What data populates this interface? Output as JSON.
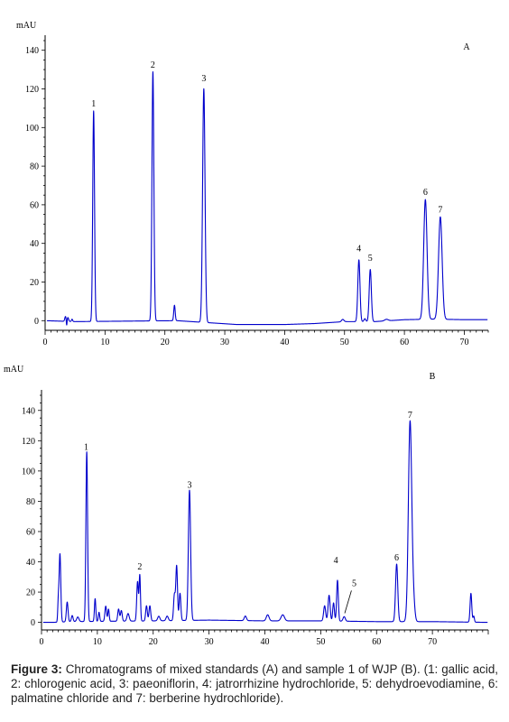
{
  "caption": {
    "label": "Figure 3:",
    "text": " Chromatograms of mixed standards (A) and sample 1 of WJP (B). (1: gallic acid, 2: chlorogenic acid, 3: paeoniflorin, 4: jatrorrhizine hydrochloride, 5: dehydroevodiamine, 6: palmatine chloride and 7: berberine hydrochloride)."
  },
  "chart_data": [
    {
      "type": "line",
      "panel": "A",
      "title": "",
      "ylabel": "mAU",
      "xlabel": "",
      "xlim": [
        0,
        74
      ],
      "ylim": [
        -5,
        145
      ],
      "xticks": [
        0,
        10,
        20,
        30,
        40,
        50,
        60,
        70
      ],
      "yticks": [
        0,
        20,
        40,
        60,
        80,
        100,
        120,
        140
      ],
      "grid": false,
      "series": [
        {
          "color": "#0000cc",
          "baseline": [
            [
              0,
              0
            ],
            [
              5,
              -0.5
            ],
            [
              22,
              0
            ],
            [
              27,
              -1
            ],
            [
              32,
              -2
            ],
            [
              40,
              -2
            ],
            [
              45,
              -1.5
            ],
            [
              50,
              -0.5
            ],
            [
              55,
              -0.5
            ],
            [
              60,
              0.5
            ],
            [
              65,
              0.8
            ],
            [
              70,
              0.5
            ],
            [
              74,
              0.5
            ]
          ],
          "peaks": [
            {
              "rt": 3.4,
              "height": 2.5,
              "width": 0.12
            },
            {
              "rt": 3.6,
              "height": -3,
              "width": 0.06
            },
            {
              "rt": 3.8,
              "height": 2,
              "width": 0.12
            },
            {
              "rt": 4.5,
              "height": 1.2,
              "width": 0.1
            },
            {
              "rt": 8.1,
              "height": 109,
              "width": 0.15
            },
            {
              "rt": 18.0,
              "height": 129,
              "width": 0.16
            },
            {
              "rt": 21.6,
              "height": 8,
              "width": 0.12
            },
            {
              "rt": 26.5,
              "height": 121,
              "width": 0.2
            },
            {
              "rt": 49.7,
              "height": 1.2,
              "width": 0.2
            },
            {
              "rt": 52.4,
              "height": 32,
              "width": 0.18
            },
            {
              "rt": 53.4,
              "height": 1.5,
              "width": 0.15
            },
            {
              "rt": 54.3,
              "height": 27,
              "width": 0.18
            },
            {
              "rt": 57.0,
              "height": 0.8,
              "width": 0.3
            },
            {
              "rt": 63.5,
              "height": 62,
              "width": 0.28
            },
            {
              "rt": 66.0,
              "height": 53,
              "width": 0.3
            }
          ]
        }
      ],
      "annotations": [
        {
          "text": "1",
          "x": 8.1,
          "y": 111
        },
        {
          "text": "2",
          "x": 18.0,
          "y": 131
        },
        {
          "text": "3",
          "x": 26.5,
          "y": 124
        },
        {
          "text": "4",
          "x": 52.4,
          "y": 36
        },
        {
          "text": "5",
          "x": 54.3,
          "y": 31
        },
        {
          "text": "6",
          "x": 63.5,
          "y": 65
        },
        {
          "text": "7",
          "x": 66.0,
          "y": 56
        }
      ],
      "panel_label": "A"
    },
    {
      "type": "line",
      "panel": "B",
      "title": "",
      "ylabel": "mAU",
      "xlabel": "",
      "xlim": [
        0,
        80
      ],
      "ylim": [
        -5,
        150
      ],
      "xticks": [
        0,
        10,
        20,
        30,
        40,
        50,
        60,
        70
      ],
      "yticks": [
        0,
        20,
        40,
        60,
        80,
        100,
        120,
        140
      ],
      "grid": false,
      "series": [
        {
          "color": "#0000cc",
          "baseline": [
            [
              0,
              0
            ],
            [
              2,
              0
            ],
            [
              5,
              0.5
            ],
            [
              20,
              1
            ],
            [
              30,
              1.5
            ],
            [
              40,
              1
            ],
            [
              50,
              1
            ],
            [
              60,
              0.5
            ],
            [
              70,
              0.5
            ],
            [
              80,
              0
            ]
          ],
          "peaks": [
            {
              "rt": 3.3,
              "height": 45,
              "width": 0.15
            },
            {
              "rt": 3.0,
              "height": 12,
              "width": 0.1
            },
            {
              "rt": 4.6,
              "height": 13,
              "width": 0.15
            },
            {
              "rt": 5.5,
              "height": 4,
              "width": 0.15
            },
            {
              "rt": 6.5,
              "height": 3,
              "width": 0.2
            },
            {
              "rt": 8.1,
              "height": 112,
              "width": 0.15
            },
            {
              "rt": 9.6,
              "height": 15,
              "width": 0.12
            },
            {
              "rt": 10.3,
              "height": 6,
              "width": 0.12
            },
            {
              "rt": 11.5,
              "height": 10,
              "width": 0.15
            },
            {
              "rt": 12.0,
              "height": 8,
              "width": 0.12
            },
            {
              "rt": 13.8,
              "height": 8,
              "width": 0.15
            },
            {
              "rt": 14.3,
              "height": 7,
              "width": 0.15
            },
            {
              "rt": 15.5,
              "height": 5,
              "width": 0.2
            },
            {
              "rt": 17.2,
              "height": 26,
              "width": 0.15
            },
            {
              "rt": 17.6,
              "height": 30,
              "width": 0.12
            },
            {
              "rt": 18.8,
              "height": 10,
              "width": 0.15
            },
            {
              "rt": 19.4,
              "height": 10,
              "width": 0.15
            },
            {
              "rt": 21.0,
              "height": 3,
              "width": 0.2
            },
            {
              "rt": 22.5,
              "height": 3,
              "width": 0.2
            },
            {
              "rt": 23.8,
              "height": 17,
              "width": 0.15
            },
            {
              "rt": 24.2,
              "height": 36,
              "width": 0.15
            },
            {
              "rt": 24.8,
              "height": 18,
              "width": 0.15
            },
            {
              "rt": 26.5,
              "height": 86,
              "width": 0.2
            },
            {
              "rt": 36.5,
              "height": 3,
              "width": 0.2
            },
            {
              "rt": 40.5,
              "height": 4,
              "width": 0.25
            },
            {
              "rt": 43.2,
              "height": 4,
              "width": 0.3
            },
            {
              "rt": 50.7,
              "height": 10,
              "width": 0.18
            },
            {
              "rt": 51.5,
              "height": 17,
              "width": 0.18
            },
            {
              "rt": 52.3,
              "height": 12,
              "width": 0.15
            },
            {
              "rt": 53.0,
              "height": 27,
              "width": 0.15
            },
            {
              "rt": 54.2,
              "height": 3,
              "width": 0.2
            },
            {
              "rt": 63.6,
              "height": 38,
              "width": 0.2
            },
            {
              "rt": 66.0,
              "height": 132,
              "width": 0.3
            },
            {
              "rt": 66.6,
              "height": 12,
              "width": 0.25
            },
            {
              "rt": 76.9,
              "height": 19,
              "width": 0.15
            },
            {
              "rt": 77.4,
              "height": 4,
              "width": 0.12
            }
          ]
        }
      ],
      "annotations": [
        {
          "text": "1",
          "x": 8.0,
          "y": 114
        },
        {
          "text": "2",
          "x": 17.6,
          "y": 35
        },
        {
          "text": "3",
          "x": 26.5,
          "y": 89
        },
        {
          "text": "4",
          "x": 52.7,
          "y": 39
        },
        {
          "text": "5",
          "x": 56.0,
          "y": 24
        },
        {
          "text": "6",
          "x": 63.6,
          "y": 41
        },
        {
          "text": "7",
          "x": 66.0,
          "y": 135
        }
      ],
      "panel_label": "B"
    }
  ]
}
